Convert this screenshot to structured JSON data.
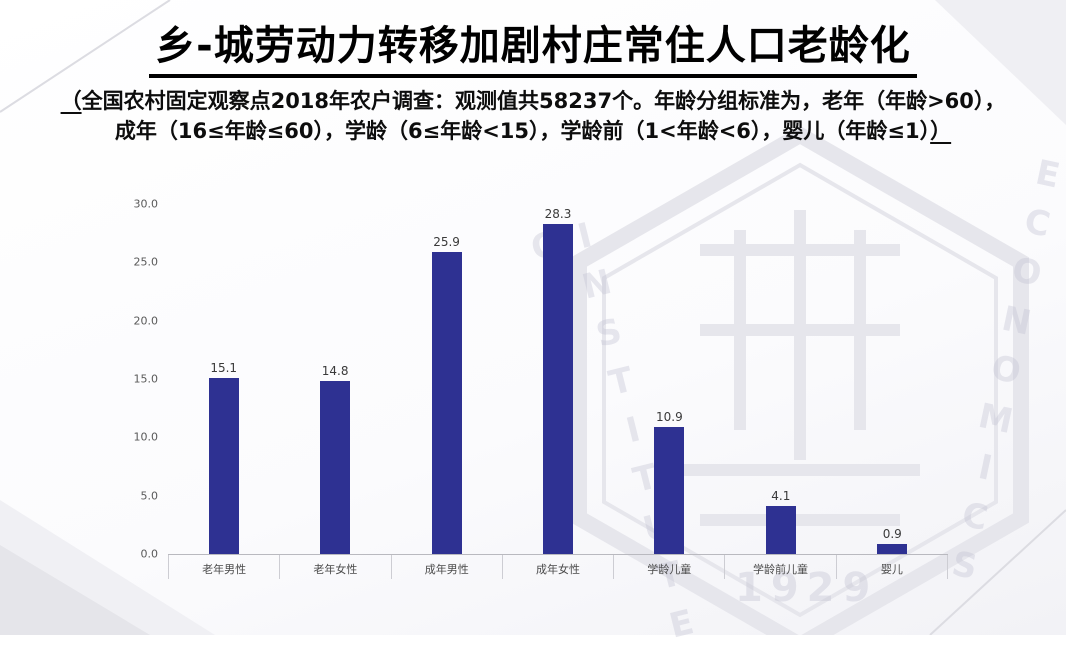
{
  "slide": {
    "title": "乡-城劳动力转移加剧村庄常住人口老龄化",
    "subtitle": {
      "open_mark": "（",
      "line1": "全国农村固定观察点2018年农户调查：观测值共58237个。年龄分组标准为，老年（年龄>60），",
      "line2": "成年（16≤年龄≤60），学龄（6≤年龄<15），学龄前（1<年龄<6），婴儿（年龄≤1）",
      "close_mark": "）"
    }
  },
  "watermark": {
    "left_text": "INSTITUTE OF",
    "right_text": "ECONOMICS",
    "year": "1929"
  },
  "chart_data": {
    "type": "bar",
    "categories": [
      "老年男性",
      "老年女性",
      "成年男性",
      "成年女性",
      "学龄儿童",
      "学龄前儿童",
      "婴儿"
    ],
    "values": [
      15.1,
      14.8,
      25.9,
      28.3,
      10.9,
      4.1,
      0.9
    ],
    "title": "",
    "xlabel": "",
    "ylabel": "",
    "ylim": [
      0,
      30
    ],
    "ytick_step": 5,
    "ytick_labels": [
      "0.0",
      "5.0",
      "10.0",
      "15.0",
      "20.0",
      "25.0",
      "30.0"
    ],
    "bar_color": "#2e3192",
    "grid": false,
    "legend": "none"
  }
}
